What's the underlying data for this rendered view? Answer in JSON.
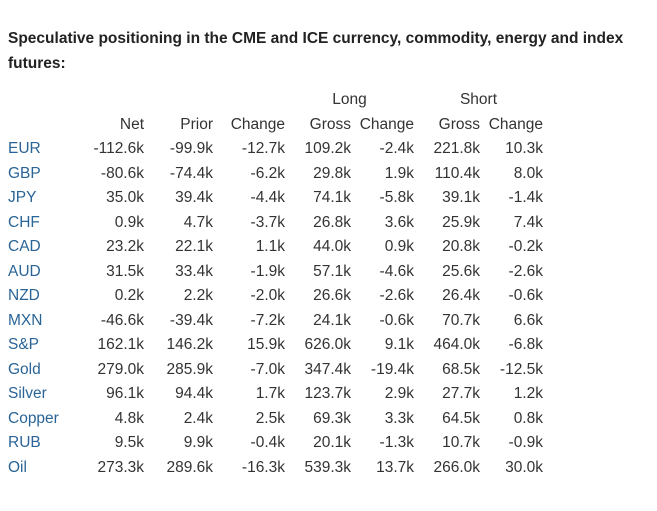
{
  "title": "Speculative positioning in the CME and ICE currency, commodity, energy and index futures:",
  "headers": {
    "long": "Long",
    "short": "Short",
    "net": "Net",
    "prior": "Prior",
    "change": "Change",
    "long_gross": "Gross",
    "long_change": "Change",
    "short_gross": "Gross",
    "short_change": "Change"
  },
  "rows": [
    {
      "name": "EUR",
      "net": "-112.6k",
      "prior": "-99.9k",
      "change": "-12.7k",
      "long_gross": "109.2k",
      "long_change": "-2.4k",
      "short_gross": "221.8k",
      "short_change": "10.3k"
    },
    {
      "name": "GBP",
      "net": "-80.6k",
      "prior": "-74.4k",
      "change": "-6.2k",
      "long_gross": "29.8k",
      "long_change": "1.9k",
      "short_gross": "110.4k",
      "short_change": "8.0k"
    },
    {
      "name": "JPY",
      "net": "35.0k",
      "prior": "39.4k",
      "change": "-4.4k",
      "long_gross": "74.1k",
      "long_change": "-5.8k",
      "short_gross": "39.1k",
      "short_change": "-1.4k"
    },
    {
      "name": "CHF",
      "net": "0.9k",
      "prior": "4.7k",
      "change": "-3.7k",
      "long_gross": "26.8k",
      "long_change": "3.6k",
      "short_gross": "25.9k",
      "short_change": "7.4k"
    },
    {
      "name": "CAD",
      "net": "23.2k",
      "prior": "22.1k",
      "change": "1.1k",
      "long_gross": "44.0k",
      "long_change": "0.9k",
      "short_gross": "20.8k",
      "short_change": "-0.2k"
    },
    {
      "name": "AUD",
      "net": "31.5k",
      "prior": "33.4k",
      "change": "-1.9k",
      "long_gross": "57.1k",
      "long_change": "-4.6k",
      "short_gross": "25.6k",
      "short_change": "-2.6k"
    },
    {
      "name": "NZD",
      "net": "0.2k",
      "prior": "2.2k",
      "change": "-2.0k",
      "long_gross": "26.6k",
      "long_change": "-2.6k",
      "short_gross": "26.4k",
      "short_change": "-0.6k"
    },
    {
      "name": "MXN",
      "net": "-46.6k",
      "prior": "-39.4k",
      "change": "-7.2k",
      "long_gross": "24.1k",
      "long_change": "-0.6k",
      "short_gross": "70.7k",
      "short_change": "6.6k"
    },
    {
      "name": "S&P",
      "net": "162.1k",
      "prior": "146.2k",
      "change": "15.9k",
      "long_gross": "626.0k",
      "long_change": "9.1k",
      "short_gross": "464.0k",
      "short_change": "-6.8k"
    },
    {
      "name": "Gold",
      "net": "279.0k",
      "prior": "285.9k",
      "change": "-7.0k",
      "long_gross": "347.4k",
      "long_change": "-19.4k",
      "short_gross": "68.5k",
      "short_change": "-12.5k"
    },
    {
      "name": "Silver",
      "net": "96.1k",
      "prior": "94.4k",
      "change": "1.7k",
      "long_gross": "123.7k",
      "long_change": "2.9k",
      "short_gross": "27.7k",
      "short_change": "1.2k"
    },
    {
      "name": "Copper",
      "net": "4.8k",
      "prior": "2.4k",
      "change": "2.5k",
      "long_gross": "69.3k",
      "long_change": "3.3k",
      "short_gross": "64.5k",
      "short_change": "0.8k"
    },
    {
      "name": "RUB",
      "net": "9.5k",
      "prior": "9.9k",
      "change": "-0.4k",
      "long_gross": "20.1k",
      "long_change": "-1.3k",
      "short_gross": "10.7k",
      "short_change": "-0.9k"
    },
    {
      "name": "Oil",
      "net": "273.3k",
      "prior": "289.6k",
      "change": "-16.3k",
      "long_gross": "539.3k",
      "long_change": "13.7k",
      "short_gross": "266.0k",
      "short_change": "30.0k"
    }
  ],
  "colors": {
    "text": "#333333",
    "instrument_link": "#2a6496",
    "background": "#ffffff"
  }
}
